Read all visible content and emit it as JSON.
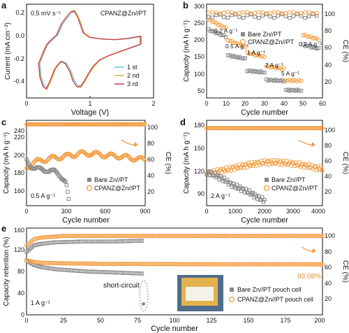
{
  "colors": {
    "gray": "#888888",
    "orange": "#F39A3C",
    "cv1": "#6EC3E4",
    "cv2": "#C9B83C",
    "cv3": "#D2334A",
    "photo_bg": "#4F6C8A",
    "pouch": "#E4B24C"
  },
  "chart_data": [
    {
      "panel": "a",
      "type": "line",
      "xlabel": "Voltage (V)",
      "ylabel": "Current (mA cm⁻²)",
      "xlim": [
        0,
        2
      ],
      "ylim": [
        -0.45,
        0.37
      ],
      "xticks": [
        "0",
        "1",
        "2"
      ],
      "yticks": [
        "-0.4",
        "-0.2",
        "0.0",
        "0.2"
      ],
      "annotations": [
        "0.5 mV s⁻¹",
        "CPANZ@Zn//PT"
      ],
      "series": [
        {
          "name": "1 st",
          "color": "#6EC3E4"
        },
        {
          "name": "2 nd",
          "color": "#C9B83C"
        },
        {
          "name": "3 rd",
          "color": "#D2334A"
        }
      ],
      "cv": {
        "x": [
          0.2,
          0.27,
          0.33,
          0.4,
          0.48,
          0.56,
          0.64,
          0.7,
          0.76,
          0.82,
          0.9,
          1.0,
          1.2,
          1.4,
          1.6,
          1.8,
          1.8,
          1.7,
          1.6,
          1.45,
          1.3,
          1.15,
          1.05,
          0.98,
          0.92,
          0.86,
          0.8,
          0.74,
          0.69,
          0.62,
          0.55,
          0.5,
          0.45,
          0.38,
          0.32,
          0.27,
          0.22,
          0.2
        ],
        "y": [
          -0.15,
          -0.05,
          0.02,
          0.06,
          0.1,
          0.2,
          0.26,
          0.3,
          0.31,
          0.25,
          0.12,
          0.08,
          0.065,
          0.06,
          0.07,
          0.09,
          0.02,
          0.0,
          -0.02,
          -0.05,
          -0.08,
          -0.12,
          -0.18,
          -0.24,
          -0.3,
          -0.35,
          -0.35,
          -0.3,
          -0.22,
          -0.15,
          -0.13,
          -0.16,
          -0.2,
          -0.3,
          -0.37,
          -0.35,
          -0.27,
          -0.15
        ]
      }
    },
    {
      "panel": "b",
      "type": "scatter",
      "xlabel": "Cycle number",
      "ylabel": "Capacity (mA h g⁻¹)",
      "y2label": "CE (%)",
      "xlim": [
        0,
        60
      ],
      "ylim": [
        50,
        325
      ],
      "y2lim": [
        0,
        110
      ],
      "xticks": [
        "0",
        "10",
        "20",
        "30",
        "40",
        "50",
        "60"
      ],
      "yticks": [
        "50",
        "100",
        "150",
        "200",
        "250",
        "300"
      ],
      "y2ticks": [
        "20",
        "40",
        "60",
        "80",
        "100"
      ],
      "rate_labels": [
        "0.2 A g⁻¹",
        "0.5 A g⁻¹",
        "1 A g⁻¹",
        "2 A g⁻¹",
        "5 A g⁻¹",
        "0.2 A g⁻¹"
      ],
      "series": [
        {
          "name": "Bare Zn//PT",
          "segments": [
            [
              1,
              10,
              250,
              230
            ],
            [
              11,
              20,
              175,
              165
            ],
            [
              21,
              30,
              130,
              125
            ],
            [
              31,
              40,
              103,
              100
            ],
            [
              41,
              49,
              73,
              72
            ],
            [
              50,
              58,
              205,
              195
            ]
          ],
          "ce": 96
        },
        {
          "name": "CPANZ@Zn//PT",
          "segments": [
            [
              1,
              10,
              280,
              255
            ],
            [
              11,
              20,
              220,
              200
            ],
            [
              21,
              30,
              182,
              170
            ],
            [
              31,
              40,
              143,
              135
            ],
            [
              41,
              49,
              102,
              100
            ],
            [
              50,
              58,
              235,
              222
            ]
          ],
          "ce": 100
        }
      ]
    },
    {
      "panel": "c",
      "type": "scatter",
      "xlabel": "Cycle number",
      "ylabel": "Capacity (mA h g⁻¹)",
      "y2label": "CE (%)",
      "xlim": [
        0,
        900
      ],
      "ylim": [
        150,
        245
      ],
      "y2lim": [
        0,
        105
      ],
      "xticks": [
        "0",
        "300",
        "600",
        "900"
      ],
      "yticks": [
        "160",
        "180",
        "200",
        "220",
        "240"
      ],
      "y2ticks": [
        "20",
        "40",
        "60",
        "80",
        "100"
      ],
      "annotations": [
        "0.5 A g⁻¹"
      ],
      "series": [
        {
          "name": "Bare Zn//PT",
          "x": [
            0,
            30,
            60,
            100,
            150,
            200,
            250,
            280,
            300,
            310,
            320
          ],
          "y": [
            200,
            195,
            192,
            190,
            190,
            188,
            185,
            180,
            175,
            165,
            155
          ]
        },
        {
          "name": "CPANZ@Zn//PT",
          "x": [
            0,
            50,
            100,
            200,
            300,
            400,
            500,
            600,
            700,
            800,
            900
          ],
          "y": [
            192,
            198,
            200,
            203,
            205,
            208,
            208,
            206,
            205,
            203,
            201
          ],
          "ce": 100
        }
      ]
    },
    {
      "panel": "d",
      "type": "scatter",
      "xlabel": "Cycle number",
      "ylabel": "Capacity (mA h g⁻¹)",
      "y2label": "CE (%)",
      "xlim": [
        0,
        4000
      ],
      "ylim": [
        78,
        190
      ],
      "y2lim": [
        0,
        110
      ],
      "xticks": [
        "0",
        "1000",
        "2000",
        "3000",
        "4000"
      ],
      "yticks": [
        "90",
        "120",
        "150",
        "180"
      ],
      "y2ticks": [
        "20",
        "40",
        "60",
        "80",
        "100"
      ],
      "annotations": [
        "2 A g⁻¹"
      ],
      "series": [
        {
          "name": "Bare Zn//PT",
          "x": [
            0,
            300,
            600,
            900,
            1200,
            1500,
            1800,
            2000
          ],
          "y": [
            122,
            118,
            112,
            105,
            100,
            95,
            88,
            85
          ]
        },
        {
          "name": "CPANZ@Zn//PT",
          "x": [
            0,
            500,
            1000,
            1500,
            2000,
            2500,
            3000,
            3500,
            4000
          ],
          "y": [
            120,
            124,
            128,
            132,
            135,
            135,
            133,
            130,
            126
          ],
          "ce": 100
        }
      ]
    },
    {
      "panel": "e",
      "type": "scatter",
      "xlabel": "Cycle number",
      "ylabel": "Capacity retention (%)",
      "y2label": "CE (%)",
      "xlim": [
        0,
        200
      ],
      "ylim": [
        0,
        160
      ],
      "y2lim": [
        0,
        110
      ],
      "xticks": [
        "0",
        "25",
        "50",
        "75",
        "100",
        "125",
        "150",
        "175",
        "200"
      ],
      "yticks": [
        "0",
        "40",
        "80",
        "120",
        "160"
      ],
      "y2ticks": [
        "20",
        "40",
        "60",
        "80",
        "100"
      ],
      "annotations": [
        "1 A g⁻¹",
        "short-circuit",
        "93.08%"
      ],
      "series": [
        {
          "name": "Bare Zn//PT pouch cell",
          "x": [
            0,
            5,
            10,
            20,
            40,
            60,
            78
          ],
          "y": [
            100,
            92,
            88,
            84,
            80,
            78,
            76
          ],
          "ce_x": [
            0,
            5,
            10,
            20,
            40,
            60,
            78
          ],
          "ce": [
            80,
            88,
            90,
            92,
            93,
            93,
            94
          ]
        },
        {
          "name": "CPANZ@Zn//PT pouch cell",
          "x": [
            0,
            10,
            25,
            50,
            100,
            150,
            200
          ],
          "y": [
            100,
            96,
            95,
            94,
            93.5,
            93.2,
            93.08
          ],
          "ce_x": [
            0,
            5,
            10,
            25,
            50,
            100,
            200
          ],
          "ce": [
            88,
            96,
            98,
            100,
            100,
            100,
            100
          ]
        }
      ]
    }
  ],
  "labels": {
    "a": {
      "panel": "a",
      "xlabel": "Voltage (V)",
      "ylabel": "Current (mA cm⁻²)",
      "scan": "0.5 mV s⁻¹",
      "cell": "CPANZ@Zn//PT",
      "l1": "1 st",
      "l2": "2 nd",
      "l3": "3 rd",
      "x0": "0",
      "x1": "1",
      "x2": "2",
      "y0": "-0.4",
      "y1": "-0.2",
      "y2": "0.0",
      "y3": "0.2"
    },
    "b": {
      "panel": "b",
      "xlabel": "Cycle number",
      "ylabel": "Capacity (mA h g⁻¹)",
      "y2label": "CE (%)",
      "r1": "0.2 A g⁻¹",
      "r2": "0.5 A g⁻¹",
      "r3": "1 A g⁻¹",
      "r4": "2 A g⁻¹",
      "r5": "5 A g⁻¹",
      "r6": "0.2 A g⁻¹",
      "leg1": "Bare Zn//PT",
      "leg2": "CPANZ@Zn//PT",
      "x0": "0",
      "x1": "10",
      "x2": "20",
      "x3": "30",
      "x4": "40",
      "x5": "50",
      "x6": "60",
      "y0": "50",
      "y1": "100",
      "y2": "150",
      "y3": "200",
      "y4": "250",
      "y5": "300",
      "c0": "20",
      "c1": "40",
      "c2": "60",
      "c3": "80",
      "c4": "100"
    },
    "c": {
      "panel": "c",
      "xlabel": "Cycle number",
      "ylabel": "Capacity (mA h g⁻¹)",
      "y2label": "CE (%)",
      "rate": "0.5 A g⁻¹",
      "leg1": "Bare Zn//PT",
      "leg2": "CPANZ@Zn//PT",
      "x0": "0",
      "x1": "300",
      "x2": "600",
      "x3": "900",
      "y0": "160",
      "y1": "180",
      "y2": "200",
      "y3": "220",
      "y4": "240",
      "c0": "20",
      "c1": "40",
      "c2": "60",
      "c3": "80",
      "c4": "100"
    },
    "d": {
      "panel": "d",
      "xlabel": "Cycle number",
      "ylabel": "Capacity (mA h g⁻¹)",
      "y2label": "CE (%)",
      "rate": "2 A g⁻¹",
      "leg1": "Bare Zn//PT",
      "leg2": "CPANZ@Zn//PT",
      "x0": "0",
      "x1": "1000",
      "x2": "2000",
      "x3": "3000",
      "x4": "4000",
      "y0": "90",
      "y1": "120",
      "y2": "150",
      "y3": "180",
      "c0": "20",
      "c1": "40",
      "c2": "60",
      "c3": "80",
      "c4": "100"
    },
    "e": {
      "panel": "e",
      "xlabel": "Cycle number",
      "ylabel": "Capacity retention (%)",
      "y2label": "CE (%)",
      "rate": "1 A g⁻¹",
      "short": "short-circuit",
      "final": "93.08%",
      "leg1": "Bare Zn//PT pouch cell",
      "leg2": "CPANZ@Zn//PT pouch cell",
      "x0": "0",
      "x1": "25",
      "x2": "50",
      "x3": "75",
      "x4": "100",
      "x5": "125",
      "x6": "150",
      "x7": "175",
      "x8": "200",
      "y0": "0",
      "y1": "40",
      "y2": "80",
      "y3": "120",
      "y4": "160",
      "c0": "20",
      "c1": "40",
      "c2": "60",
      "c3": "80",
      "c4": "100"
    }
  }
}
